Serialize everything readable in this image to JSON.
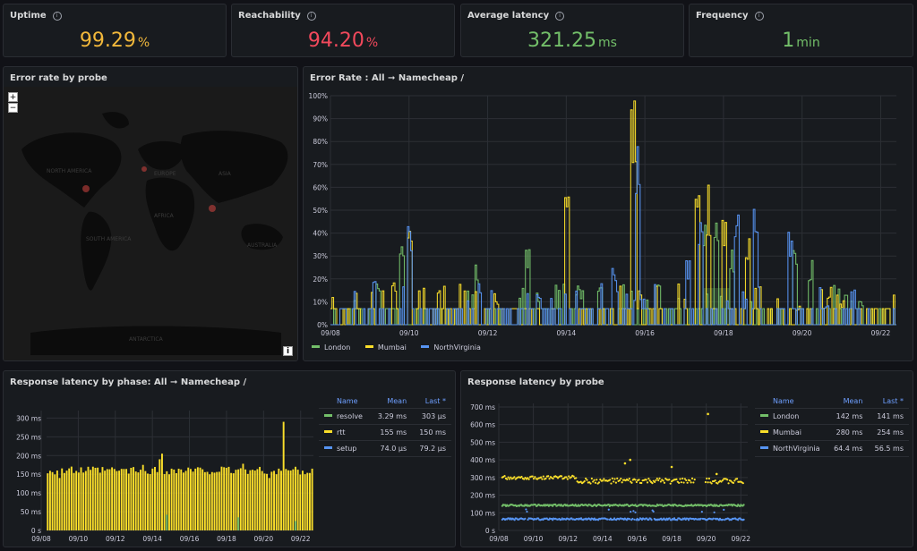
{
  "stats": [
    {
      "title": "Uptime",
      "value": "99.29",
      "unit": "%",
      "color": "#f2b83b"
    },
    {
      "title": "Reachability",
      "value": "94.20",
      "unit": "%",
      "color": "#f2495c"
    },
    {
      "title": "Average latency",
      "value": "321.25",
      "unit": "ms",
      "color": "#73bf69"
    },
    {
      "title": "Frequency",
      "value": "1",
      "unit": "min",
      "color": "#73bf69"
    }
  ],
  "map": {
    "title": "Error rate by probe",
    "zoom_in": "+",
    "zoom_out": "−",
    "info": "i",
    "labels": [
      "NORTH AMERICA",
      "EUROPE",
      "ASIA",
      "AFRICA",
      "SOUTH AMERICA",
      "AUSTRALIA",
      "ANTARCTICA"
    ]
  },
  "colors": {
    "london": "#73bf69",
    "mumbai": "#fade2a",
    "nv": "#5794f2",
    "grid": "#2c2f35",
    "axis": "#ccccdc"
  },
  "error_panel": {
    "title": "Error Rate : All ➞ Namecheap /"
  },
  "phase_panel": {
    "title": "Response latency by phase: All ➞ Namecheap /",
    "headers": [
      "Name",
      "Mean",
      "Last *"
    ],
    "rows": [
      {
        "name": "resolve",
        "mean": "3.29 ms",
        "last": "303 µs",
        "color": "#73bf69"
      },
      {
        "name": "rtt",
        "mean": "155 ms",
        "last": "150 ms",
        "color": "#fade2a"
      },
      {
        "name": "setup",
        "mean": "74.0 µs",
        "last": "79.2 µs",
        "color": "#5794f2"
      }
    ]
  },
  "probe_panel": {
    "title": "Response latency by probe",
    "headers": [
      "Name",
      "Mean",
      "Last *"
    ],
    "rows": [
      {
        "name": "London",
        "mean": "142 ms",
        "last": "141 ms",
        "color": "#73bf69"
      },
      {
        "name": "Mumbai",
        "mean": "280 ms",
        "last": "254 ms",
        "color": "#fade2a"
      },
      {
        "name": "NorthVirginia",
        "mean": "64.4 ms",
        "last": "56.5 ms",
        "color": "#5794f2"
      }
    ]
  },
  "chart_data": [
    {
      "type": "line",
      "title": "Error Rate : All ➞ Namecheap /",
      "x_ticks": [
        "09/08",
        "09/10",
        "09/12",
        "09/14",
        "09/16",
        "09/18",
        "09/20",
        "09/22"
      ],
      "y_ticks": [
        "0%",
        "10%",
        "20%",
        "30%",
        "40%",
        "50%",
        "60%",
        "70%",
        "80%",
        "90%",
        "100%"
      ],
      "ylim": [
        0,
        100
      ],
      "x_range_days": [
        0,
        14.4
      ],
      "series": [
        {
          "name": "London",
          "color": "#73bf69",
          "peaks": [
            [
              1.2,
              20
            ],
            [
              1.8,
              35
            ],
            [
              3.7,
              27
            ],
            [
              5.0,
              36
            ],
            [
              6.3,
              18
            ],
            [
              8.3,
              20
            ],
            [
              9.5,
              50
            ],
            [
              9.8,
              52
            ],
            [
              10.2,
              33
            ],
            [
              11.8,
              44
            ],
            [
              12.2,
              30
            ],
            [
              13.5,
              12
            ]
          ]
        },
        {
          "name": "Mumbai",
          "color": "#fade2a",
          "peaks": [
            [
              1.6,
              22
            ],
            [
              2.0,
              50
            ],
            [
              4.2,
              14
            ],
            [
              6.0,
              58
            ],
            [
              7.7,
              100
            ],
            [
              9.3,
              58
            ],
            [
              9.6,
              62
            ],
            [
              10.0,
              50
            ],
            [
              10.6,
              38
            ],
            [
              11.9,
              9
            ],
            [
              13.0,
              12
            ]
          ]
        },
        {
          "name": "NorthVirginia",
          "color": "#5794f2",
          "peaks": [
            [
              1.1,
              22
            ],
            [
              2.0,
              50
            ],
            [
              5.3,
              18
            ],
            [
              7.2,
              26
            ],
            [
              7.8,
              95
            ],
            [
              9.1,
              28
            ],
            [
              9.4,
              55
            ],
            [
              10.3,
              50
            ],
            [
              10.8,
              66
            ],
            [
              11.7,
              42
            ],
            [
              12.6,
              9
            ]
          ]
        }
      ],
      "legend": "bottom-left"
    },
    {
      "type": "bar",
      "title": "Response latency by phase: All ➞ Namecheap /",
      "x_ticks": [
        "09/08",
        "09/10",
        "09/12",
        "09/14",
        "09/16",
        "09/18",
        "09/20",
        "09/22"
      ],
      "y_ticks": [
        "0 s",
        "50 ms",
        "100 ms",
        "150 ms",
        "200 ms",
        "250 ms",
        "300 ms"
      ],
      "ylim": [
        0,
        320
      ],
      "series": [
        {
          "name": "rtt",
          "color": "#fade2a",
          "typical": 160,
          "notable": [
            [
              5,
              140
            ],
            [
              40,
              175
            ],
            [
              47,
              190
            ],
            [
              48,
              205
            ],
            [
              82,
              178
            ],
            [
              93,
              140
            ],
            [
              96,
              150
            ],
            [
              99,
              290
            ],
            [
              102,
              160
            ],
            [
              104,
              170
            ],
            [
              108,
              150
            ]
          ]
        },
        {
          "name": "resolve",
          "color": "#73bf69",
          "notable": [
            [
              50,
              42
            ],
            [
              80,
              35
            ],
            [
              104,
              25
            ]
          ]
        }
      ]
    },
    {
      "type": "scatter",
      "title": "Response latency by probe",
      "x_ticks": [
        "09/08",
        "09/10",
        "09/12",
        "09/14",
        "09/16",
        "09/18",
        "09/20",
        "09/22"
      ],
      "y_ticks": [
        "0 s",
        "100 ms",
        "200 ms",
        "300 ms",
        "400 ms",
        "500 ms",
        "600 ms",
        "700 ms"
      ],
      "ylim": [
        0,
        720
      ],
      "series": [
        {
          "name": "London",
          "color": "#73bf69",
          "typical": 142
        },
        {
          "name": "Mumbai",
          "color": "#fade2a",
          "typical": 280,
          "outliers": [
            [
              7.3,
              380
            ],
            [
              7.6,
              400
            ],
            [
              10.0,
              360
            ],
            [
              12.1,
              660
            ],
            [
              12.6,
              320
            ]
          ]
        },
        {
          "name": "NorthVirginia",
          "color": "#5794f2",
          "typical": 64
        }
      ]
    }
  ]
}
